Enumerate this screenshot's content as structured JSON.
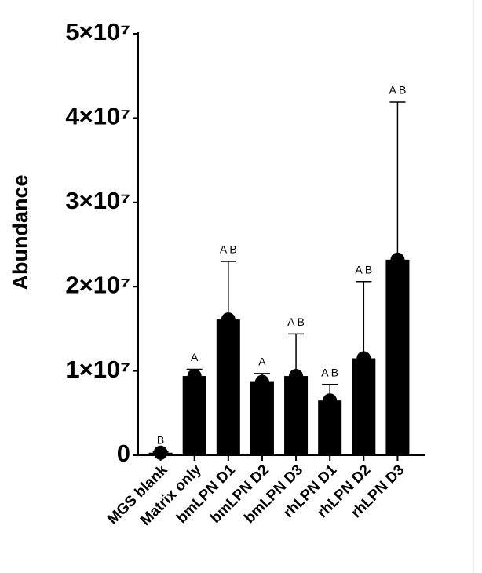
{
  "chart_data": {
    "type": "bar",
    "y_label": "Abundance",
    "categories": [
      "MGS blank",
      "Matrix only",
      "bmLPN D1",
      "bmLPN D2",
      "bmLPN D3",
      "rhLPN D1",
      "rhLPN D2",
      "rhLPN D3"
    ],
    "values": [
      300000,
      9400000,
      16100000,
      8700000,
      9400000,
      6500000,
      11500000,
      23200000
    ],
    "errors": [
      100000,
      800000,
      6900000,
      1000000,
      5000000,
      1900000,
      9100000,
      18700000
    ],
    "annotations": [
      "B",
      "A",
      "A B",
      "A",
      "A B",
      "A B",
      "A B",
      "A B"
    ],
    "color": "#000000",
    "ylim": [
      0,
      50000000
    ],
    "yticks": [
      0,
      {
        "value": 10000000,
        "label": "1×10⁷"
      },
      {
        "value": 20000000,
        "label": "2×10⁷"
      },
      {
        "value": 30000000,
        "label": "3×10⁷"
      },
      {
        "value": 40000000,
        "label": "4×10⁷"
      },
      {
        "value": 50000000,
        "label": "5×10⁷"
      }
    ],
    "grid": false
  }
}
